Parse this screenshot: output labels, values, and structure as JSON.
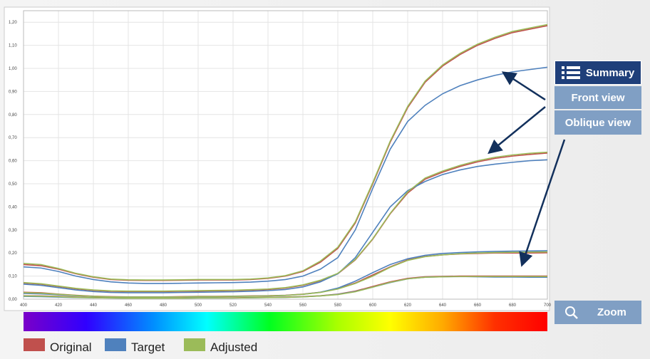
{
  "chart_data": {
    "type": "line",
    "x": [
      400,
      410,
      420,
      430,
      440,
      450,
      460,
      470,
      480,
      490,
      500,
      510,
      520,
      530,
      540,
      550,
      560,
      570,
      580,
      590,
      600,
      610,
      620,
      630,
      640,
      650,
      660,
      670,
      680,
      690,
      700
    ],
    "xlim": [
      400,
      700
    ],
    "xticks": [
      400,
      420,
      440,
      460,
      480,
      500,
      520,
      540,
      560,
      580,
      600,
      620,
      640,
      660,
      680,
      700
    ],
    "ylim": [
      0,
      1.25
    ],
    "yticks": [
      {
        "value": 0,
        "label": "0,00"
      },
      {
        "value": 0.1,
        "label": "0,10"
      },
      {
        "value": 0.2,
        "label": "0,20"
      },
      {
        "value": 0.3,
        "label": "0,30"
      },
      {
        "value": 0.4,
        "label": "0,40"
      },
      {
        "value": 0.5,
        "label": "0,50"
      },
      {
        "value": 0.6,
        "label": "0,60"
      },
      {
        "value": 0.7,
        "label": "0,70"
      },
      {
        "value": 0.8,
        "label": "0,80"
      },
      {
        "value": 0.9,
        "label": "0,90"
      },
      {
        "value": 1,
        "label": "1,00"
      },
      {
        "value": 1.1,
        "label": "1,10"
      },
      {
        "value": 1.2,
        "label": "1,20"
      }
    ],
    "grid": true,
    "series": [
      {
        "name": "Original",
        "color": "#c0504d",
        "curves": [
          [
            0.15,
            0.145,
            0.13,
            0.11,
            0.095,
            0.085,
            0.082,
            0.081,
            0.081,
            0.082,
            0.083,
            0.083,
            0.083,
            0.085,
            0.09,
            0.1,
            0.12,
            0.16,
            0.22,
            0.33,
            0.5,
            0.68,
            0.83,
            0.94,
            1.01,
            1.06,
            1.1,
            1.13,
            1.155,
            1.17,
            1.185
          ],
          [
            0.07,
            0.065,
            0.055,
            0.045,
            0.038,
            0.034,
            0.033,
            0.033,
            0.033,
            0.034,
            0.035,
            0.036,
            0.037,
            0.039,
            0.042,
            0.048,
            0.06,
            0.08,
            0.11,
            0.17,
            0.26,
            0.37,
            0.46,
            0.52,
            0.55,
            0.575,
            0.595,
            0.61,
            0.62,
            0.627,
            0.633
          ],
          [
            0.03,
            0.028,
            0.022,
            0.017,
            0.013,
            0.011,
            0.01,
            0.01,
            0.01,
            0.011,
            0.012,
            0.012,
            0.013,
            0.014,
            0.015,
            0.017,
            0.022,
            0.03,
            0.045,
            0.07,
            0.105,
            0.14,
            0.17,
            0.185,
            0.192,
            0.196,
            0.198,
            0.2,
            0.2,
            0.2,
            0.201
          ],
          [
            0.015,
            0.014,
            0.012,
            0.009,
            0.007,
            0.006,
            0.005,
            0.005,
            0.005,
            0.005,
            0.006,
            0.006,
            0.006,
            0.007,
            0.008,
            0.009,
            0.011,
            0.015,
            0.022,
            0.035,
            0.055,
            0.075,
            0.09,
            0.097,
            0.099,
            0.1,
            0.1,
            0.1,
            0.1,
            0.1,
            0.1
          ]
        ]
      },
      {
        "name": "Target",
        "color": "#4f81bd",
        "curves": [
          [
            0.14,
            0.135,
            0.12,
            0.1,
            0.085,
            0.075,
            0.07,
            0.068,
            0.068,
            0.069,
            0.07,
            0.071,
            0.072,
            0.074,
            0.078,
            0.085,
            0.1,
            0.13,
            0.18,
            0.3,
            0.48,
            0.65,
            0.77,
            0.84,
            0.89,
            0.925,
            0.95,
            0.97,
            0.985,
            0.995,
            1.005
          ],
          [
            0.065,
            0.06,
            0.05,
            0.04,
            0.033,
            0.029,
            0.028,
            0.028,
            0.028,
            0.029,
            0.03,
            0.031,
            0.032,
            0.034,
            0.037,
            0.042,
            0.053,
            0.075,
            0.11,
            0.18,
            0.29,
            0.4,
            0.47,
            0.51,
            0.54,
            0.56,
            0.575,
            0.585,
            0.593,
            0.6,
            0.604
          ],
          [
            0.025,
            0.023,
            0.019,
            0.015,
            0.012,
            0.01,
            0.009,
            0.009,
            0.009,
            0.01,
            0.011,
            0.011,
            0.012,
            0.013,
            0.014,
            0.016,
            0.021,
            0.03,
            0.048,
            0.078,
            0.115,
            0.15,
            0.175,
            0.19,
            0.198,
            0.202,
            0.205,
            0.207,
            0.208,
            0.209,
            0.21
          ],
          [
            0.012,
            0.011,
            0.009,
            0.007,
            0.006,
            0.005,
            0.004,
            0.004,
            0.004,
            0.004,
            0.005,
            0.005,
            0.005,
            0.006,
            0.007,
            0.008,
            0.01,
            0.014,
            0.021,
            0.033,
            0.052,
            0.072,
            0.088,
            0.095,
            0.097,
            0.098,
            0.097,
            0.096,
            0.096,
            0.095,
            0.095
          ]
        ]
      },
      {
        "name": "Adjusted",
        "color": "#9bbb59",
        "curves": [
          [
            0.155,
            0.15,
            0.133,
            0.112,
            0.097,
            0.087,
            0.084,
            0.083,
            0.083,
            0.084,
            0.085,
            0.085,
            0.085,
            0.087,
            0.092,
            0.102,
            0.123,
            0.165,
            0.225,
            0.335,
            0.505,
            0.685,
            0.835,
            0.945,
            1.015,
            1.065,
            1.105,
            1.135,
            1.16,
            1.175,
            1.19
          ],
          [
            0.072,
            0.067,
            0.057,
            0.047,
            0.04,
            0.036,
            0.035,
            0.035,
            0.035,
            0.036,
            0.037,
            0.038,
            0.039,
            0.041,
            0.044,
            0.05,
            0.062,
            0.082,
            0.112,
            0.172,
            0.262,
            0.372,
            0.465,
            0.525,
            0.555,
            0.58,
            0.6,
            0.615,
            0.625,
            0.632,
            0.637
          ],
          [
            0.028,
            0.026,
            0.021,
            0.016,
            0.012,
            0.01,
            0.009,
            0.009,
            0.009,
            0.01,
            0.011,
            0.011,
            0.012,
            0.013,
            0.014,
            0.016,
            0.021,
            0.029,
            0.044,
            0.068,
            0.1,
            0.138,
            0.168,
            0.184,
            0.192,
            0.197,
            0.2,
            0.202,
            0.203,
            0.204,
            0.205
          ],
          [
            0.014,
            0.013,
            0.011,
            0.008,
            0.006,
            0.005,
            0.004,
            0.004,
            0.004,
            0.004,
            0.005,
            0.005,
            0.005,
            0.006,
            0.007,
            0.008,
            0.01,
            0.014,
            0.02,
            0.032,
            0.052,
            0.073,
            0.088,
            0.095,
            0.097,
            0.098,
            0.098,
            0.098,
            0.098,
            0.098,
            0.098
          ]
        ]
      }
    ]
  },
  "buttons": [
    "Summary",
    "Front view",
    "Oblique view",
    "Zoom"
  ]
}
